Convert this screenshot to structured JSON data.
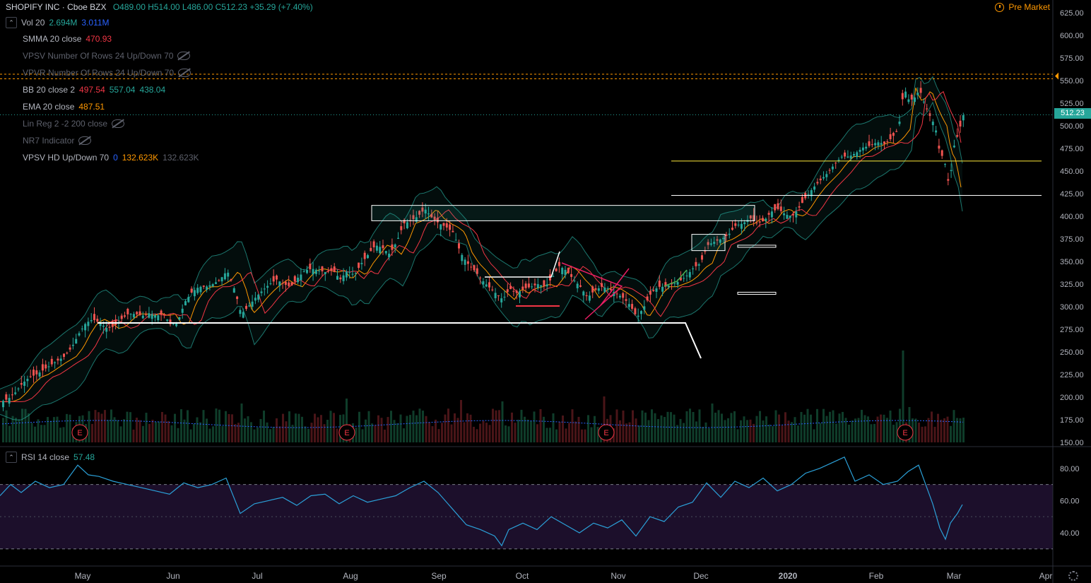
{
  "header": {
    "symbol": "SHOPIFY INC · Cboe BZX",
    "ohlc": "O489.00 H514.00 L486.00 C512.23 +35.29 (+7.40%)"
  },
  "pre_market": "Pre Market",
  "last_price_label": "512.23",
  "indicators": [
    {
      "name": "Vol 20",
      "values": [
        {
          "text": "2.694M",
          "color": "#26a69a"
        },
        {
          "text": "3.011M",
          "color": "#2962ff"
        }
      ],
      "dim": false,
      "hidden": false
    },
    {
      "name": "SMMA 20 close",
      "values": [
        {
          "text": "470.93",
          "color": "#f23645"
        }
      ],
      "dim": false,
      "hidden": false
    },
    {
      "name": "VPSV Number Of Rows 24 Up/Down 70",
      "values": [],
      "dim": true,
      "hidden": true
    },
    {
      "name": "VPVR Number Of Rows 24 Up/Down 70",
      "values": [],
      "dim": true,
      "hidden": true
    },
    {
      "name": "BB 20 close 2",
      "values": [
        {
          "text": "497.54",
          "color": "#f23645"
        },
        {
          "text": "557.04",
          "color": "#26a69a"
        },
        {
          "text": "438.04",
          "color": "#26a69a"
        }
      ],
      "dim": false,
      "hidden": false
    },
    {
      "name": "EMA 20 close",
      "values": [
        {
          "text": "487.51",
          "color": "#ff9800"
        }
      ],
      "dim": false,
      "hidden": false
    },
    {
      "name": "Lin Reg 2 -2 200 close",
      "values": [],
      "dim": true,
      "hidden": true
    },
    {
      "name": "NR7 Indicator",
      "values": [],
      "dim": true,
      "hidden": true
    },
    {
      "name": "VPSV HD Up/Down 70",
      "values": [
        {
          "text": "0",
          "color": "#2962ff"
        },
        {
          "text": "132.623K",
          "color": "#ff9800"
        },
        {
          "text": "132.623K",
          "color": "#5d606b"
        }
      ],
      "dim": false,
      "hidden": false
    }
  ],
  "rsi_legend": {
    "name": "RSI 14 close",
    "value": "57.48",
    "color": "#26a69a"
  },
  "chart_data": {
    "type": "candlestick",
    "title": "SHOPIFY INC · Cboe BZX",
    "price_axis": {
      "ticks": [
        "625.00",
        "600.00",
        "575.00",
        "550.00",
        "525.00",
        "500.00",
        "475.00",
        "450.00",
        "425.00",
        "400.00",
        "375.00",
        "350.00",
        "325.00",
        "300.00",
        "275.00",
        "250.00",
        "225.00",
        "200.00",
        "175.00",
        "150.00"
      ],
      "range": [
        150,
        625
      ]
    },
    "rsi_axis": {
      "ticks": [
        "80.00",
        "60.00",
        "40.00"
      ],
      "upper": 70,
      "lower": 30
    },
    "time_axis": [
      "May",
      "Jun",
      "Jul",
      "Aug",
      "Sep",
      "Oct",
      "Nov",
      "Dec",
      "2020",
      "Feb",
      "Mar",
      "Apr"
    ],
    "earnings_marker": "E",
    "price_path": [
      [
        0,
        195
      ],
      [
        10,
        198
      ],
      [
        20,
        205
      ],
      [
        30,
        215
      ],
      [
        40,
        222
      ],
      [
        50,
        225
      ],
      [
        60,
        230
      ],
      [
        75,
        238
      ],
      [
        90,
        245
      ],
      [
        100,
        255
      ],
      [
        110,
        270
      ],
      [
        120,
        282
      ],
      [
        130,
        286
      ],
      [
        140,
        282
      ],
      [
        150,
        276
      ],
      [
        160,
        278
      ],
      [
        170,
        286
      ],
      [
        180,
        292
      ],
      [
        190,
        292
      ],
      [
        200,
        290
      ],
      [
        210,
        293
      ],
      [
        220,
        290
      ],
      [
        230,
        292
      ],
      [
        240,
        280
      ],
      [
        250,
        283
      ],
      [
        260,
        305
      ],
      [
        270,
        316
      ],
      [
        280,
        322
      ],
      [
        290,
        322
      ],
      [
        300,
        325
      ],
      [
        310,
        330
      ],
      [
        320,
        340
      ],
      [
        330,
        320
      ],
      [
        340,
        292
      ],
      [
        350,
        300
      ],
      [
        360,
        310
      ],
      [
        370,
        318
      ],
      [
        380,
        325
      ],
      [
        390,
        330
      ],
      [
        400,
        325
      ],
      [
        410,
        322
      ],
      [
        420,
        332
      ],
      [
        430,
        340
      ],
      [
        440,
        342
      ],
      [
        450,
        340
      ],
      [
        460,
        338
      ],
      [
        470,
        340
      ],
      [
        480,
        330
      ],
      [
        490,
        340
      ],
      [
        500,
        335
      ],
      [
        510,
        348
      ],
      [
        520,
        358
      ],
      [
        530,
        368
      ],
      [
        540,
        365
      ],
      [
        550,
        358
      ],
      [
        560,
        372
      ],
      [
        570,
        392
      ],
      [
        580,
        395
      ],
      [
        590,
        400
      ],
      [
        600,
        408
      ],
      [
        610,
        398
      ],
      [
        620,
        392
      ],
      [
        630,
        388
      ],
      [
        640,
        382
      ],
      [
        650,
        360
      ],
      [
        660,
        348
      ],
      [
        670,
        340
      ],
      [
        680,
        330
      ],
      [
        690,
        322
      ],
      [
        700,
        315
      ],
      [
        710,
        308
      ],
      [
        720,
        320
      ],
      [
        730,
        315
      ],
      [
        740,
        320
      ],
      [
        750,
        322
      ],
      [
        760,
        325
      ],
      [
        770,
        322
      ],
      [
        780,
        332
      ],
      [
        790,
        345
      ],
      [
        800,
        340
      ],
      [
        810,
        330
      ],
      [
        820,
        322
      ],
      [
        830,
        310
      ],
      [
        840,
        318
      ],
      [
        850,
        322
      ],
      [
        860,
        320
      ],
      [
        870,
        315
      ],
      [
        880,
        310
      ],
      [
        890,
        302
      ],
      [
        900,
        288
      ],
      [
        910,
        300
      ],
      [
        920,
        315
      ],
      [
        930,
        322
      ],
      [
        940,
        322
      ],
      [
        950,
        325
      ],
      [
        960,
        328
      ],
      [
        970,
        334
      ],
      [
        980,
        343
      ],
      [
        990,
        348
      ],
      [
        1000,
        368
      ],
      [
        1010,
        372
      ],
      [
        1020,
        375
      ],
      [
        1030,
        380
      ],
      [
        1040,
        390
      ],
      [
        1050,
        392
      ],
      [
        1060,
        398
      ],
      [
        1070,
        392
      ],
      [
        1080,
        395
      ],
      [
        1090,
        405
      ],
      [
        1100,
        408
      ],
      [
        1110,
        402
      ],
      [
        1120,
        400
      ],
      [
        1130,
        410
      ],
      [
        1140,
        422
      ],
      [
        1150,
        432
      ],
      [
        1160,
        440
      ],
      [
        1170,
        448
      ],
      [
        1180,
        458
      ],
      [
        1190,
        466
      ],
      [
        1200,
        466
      ],
      [
        1210,
        470
      ],
      [
        1220,
        476
      ],
      [
        1230,
        478
      ],
      [
        1240,
        482
      ],
      [
        1250,
        480
      ],
      [
        1260,
        486
      ],
      [
        1270,
        496
      ],
      [
        1278,
        542
      ],
      [
        1285,
        528
      ],
      [
        1292,
        530
      ],
      [
        1300,
        540
      ],
      [
        1308,
        522
      ],
      [
        1315,
        510
      ],
      [
        1322,
        500
      ],
      [
        1328,
        472
      ],
      [
        1335,
        462
      ],
      [
        1342,
        432
      ],
      [
        1348,
        476
      ],
      [
        1355,
        492
      ],
      [
        1362,
        512.23
      ]
    ],
    "volume_spikes": [
      [
        340,
        55
      ],
      [
        490,
        62
      ],
      [
        650,
        60
      ],
      [
        710,
        58
      ],
      [
        855,
        65
      ],
      [
        1005,
        55
      ],
      [
        1278,
        130
      ],
      [
        1285,
        50
      ]
    ],
    "rsi_path": [
      [
        0,
        63
      ],
      [
        15,
        70
      ],
      [
        30,
        65
      ],
      [
        50,
        72
      ],
      [
        70,
        68
      ],
      [
        90,
        70
      ],
      [
        110,
        82
      ],
      [
        125,
        76
      ],
      [
        140,
        75
      ],
      [
        160,
        72
      ],
      [
        180,
        70
      ],
      [
        200,
        68
      ],
      [
        220,
        66
      ],
      [
        240,
        64
      ],
      [
        260,
        71
      ],
      [
        280,
        68
      ],
      [
        300,
        70
      ],
      [
        320,
        74
      ],
      [
        340,
        52
      ],
      [
        360,
        58
      ],
      [
        380,
        60
      ],
      [
        400,
        62
      ],
      [
        420,
        57
      ],
      [
        440,
        63
      ],
      [
        460,
        64
      ],
      [
        480,
        58
      ],
      [
        500,
        63
      ],
      [
        520,
        59
      ],
      [
        540,
        61
      ],
      [
        560,
        63
      ],
      [
        580,
        68
      ],
      [
        600,
        72
      ],
      [
        620,
        65
      ],
      [
        640,
        55
      ],
      [
        660,
        45
      ],
      [
        680,
        42
      ],
      [
        700,
        38
      ],
      [
        710,
        32
      ],
      [
        720,
        42
      ],
      [
        740,
        46
      ],
      [
        760,
        42
      ],
      [
        780,
        50
      ],
      [
        800,
        45
      ],
      [
        820,
        40
      ],
      [
        840,
        46
      ],
      [
        860,
        43
      ],
      [
        880,
        48
      ],
      [
        900,
        38
      ],
      [
        920,
        50
      ],
      [
        940,
        47
      ],
      [
        960,
        56
      ],
      [
        980,
        59
      ],
      [
        1000,
        71
      ],
      [
        1020,
        62
      ],
      [
        1040,
        72
      ],
      [
        1060,
        68
      ],
      [
        1080,
        74
      ],
      [
        1100,
        66
      ],
      [
        1120,
        70
      ],
      [
        1140,
        77
      ],
      [
        1160,
        80
      ],
      [
        1180,
        84
      ],
      [
        1195,
        87
      ],
      [
        1210,
        72
      ],
      [
        1230,
        76
      ],
      [
        1250,
        70
      ],
      [
        1270,
        72
      ],
      [
        1285,
        78
      ],
      [
        1300,
        82
      ],
      [
        1310,
        70
      ],
      [
        1320,
        58
      ],
      [
        1330,
        43
      ],
      [
        1338,
        36
      ],
      [
        1345,
        46
      ],
      [
        1355,
        52
      ],
      [
        1362,
        57.48
      ]
    ],
    "ylabel": "",
    "xlabel": ""
  }
}
